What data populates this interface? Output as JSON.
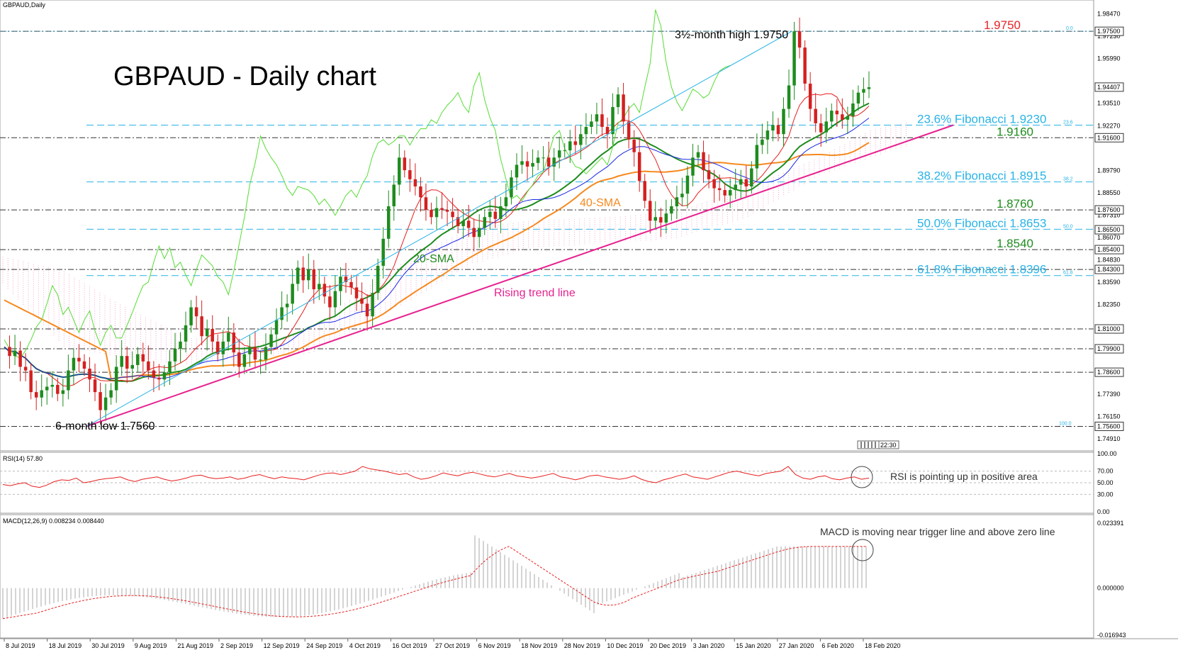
{
  "window": {
    "title": "GBPAUD,Daily"
  },
  "headline": "GBPAUD - Daily chart",
  "price_axis": {
    "labels": [
      "1.98470",
      "1.97230",
      "1.95990",
      "1.94407",
      "1.93510",
      "1.92270",
      "1.91600",
      "1.89790",
      "1.88550",
      "1.87310",
      "1.86070",
      "1.84830",
      "1.83590",
      "1.82350",
      "1.81000",
      "1.79900",
      "1.78600",
      "1.77390",
      "1.76150",
      "1.75600",
      "1.74910"
    ],
    "values": [
      1.9847,
      1.9723,
      1.9599,
      1.94407,
      1.9351,
      1.9227,
      1.916,
      1.8979,
      1.8855,
      1.8731,
      1.8607,
      1.8483,
      1.8359,
      1.8235,
      1.81,
      1.799,
      1.786,
      1.7739,
      1.7615,
      1.756,
      1.7491
    ],
    "boxed": {
      "1.97500": 1.975,
      "1.94407": 1.94407,
      "1.91600": 1.916,
      "1.87600": 1.876,
      "1.86500": 1.865,
      "1.85400": 1.854,
      "1.84300": 1.843,
      "1.81000": 1.81,
      "1.79900": 1.799,
      "1.78600": 1.786,
      "1.75600": 1.756
    },
    "current": "1.94407",
    "range": [
      1.744,
      1.99
    ]
  },
  "date_axis": [
    "8 Jul 2019",
    "18 Jul 2019",
    "30 Jul 2019",
    "9 Aug 2019",
    "21 Aug 2019",
    "2 Sep 2019",
    "12 Sep 2019",
    "24 Sep 2019",
    "4 Oct 2019",
    "16 Oct 2019",
    "27 Oct 2019",
    "6 Nov 2019",
    "18 Nov 2019",
    "28 Nov 2019",
    "10 Dec 2019",
    "20 Dec 2019",
    "3 Jan 2020",
    "15 Jan 2020",
    "27 Jan 2020",
    "6 Feb 2020",
    "18 Feb 2020"
  ],
  "levels": [
    {
      "label": "1.9750",
      "value": 1.975,
      "color": "#e8232a",
      "style": "dashdot",
      "key": "high"
    },
    {
      "label": "23.6% Fibonacci 1.9230",
      "value": 1.923,
      "color": "#29b3e6",
      "style": "dash",
      "key": "fib236"
    },
    {
      "label": "1.9160",
      "value": 1.916,
      "color": "#1e8c1e",
      "style": "dashdot",
      "key": "l1916"
    },
    {
      "label": "38.2% Fibonacci 1.8915",
      "value": 1.8915,
      "color": "#29b3e6",
      "style": "dash",
      "key": "fib382"
    },
    {
      "label": "1.8760",
      "value": 1.876,
      "color": "#1e8c1e",
      "style": "dashdot",
      "key": "l1876"
    },
    {
      "label": "50.0% Fibonacci 1.8653",
      "value": 1.8653,
      "color": "#29b3e6",
      "style": "dash",
      "key": "fib50"
    },
    {
      "label": "1.8540",
      "value": 1.854,
      "color": "#1e8c1e",
      "style": "dashdot",
      "key": "l1854"
    },
    {
      "label": "61.8% Fibonacci 1.8396",
      "value": 1.8396,
      "color": "#29b3e6",
      "style": "dash",
      "key": "fib618"
    }
  ],
  "extra_levels": [
    1.843,
    1.81,
    1.799,
    1.786,
    1.756
  ],
  "fib_small": {
    "fib0": "0.0",
    "fib236": "23.6",
    "fib382": "38.2",
    "fib50": "50.0",
    "fib618": "61.8",
    "fib100": "100.0"
  },
  "annotations": {
    "high": "3½-month high 1.9750",
    "low": "6-month low 1.7560",
    "sma20": "20-SMA",
    "sma40": "40-SMA",
    "trend": "Rising trend line",
    "rsi_note": "RSI is pointing up in positive area",
    "macd_note": "MACD is moving near trigger line and above zero line"
  },
  "rsi": {
    "title": "RSI(14) 57.80",
    "axis_labels": [
      "100.00",
      "70.00",
      "50.00",
      "30.00",
      "0.00"
    ],
    "values": [
      47,
      45,
      48,
      50,
      44,
      42,
      46,
      52,
      55,
      54,
      58,
      50,
      52,
      55,
      57,
      58,
      60,
      55,
      52,
      56,
      58,
      60,
      56,
      53,
      55,
      58,
      62,
      63,
      59,
      57,
      58,
      60,
      56,
      58,
      62,
      64,
      60,
      57,
      60,
      58,
      57,
      55,
      59,
      63,
      66,
      67,
      64,
      67,
      70,
      78,
      74,
      72,
      70,
      67,
      64,
      66,
      60,
      56,
      58,
      62,
      67,
      64,
      62,
      66,
      68,
      65,
      62,
      60,
      63,
      66,
      62,
      60,
      58,
      60,
      63,
      66,
      60,
      58,
      55,
      58,
      62,
      63,
      60,
      58,
      56,
      58,
      62,
      56,
      52,
      50,
      55,
      58,
      62,
      65,
      60,
      58,
      56,
      60,
      64,
      68,
      70,
      67,
      64,
      62,
      66,
      68,
      70,
      78,
      64,
      58,
      56,
      60,
      62,
      57,
      55,
      58,
      60,
      56,
      58
    ]
  },
  "macd": {
    "title": "MACD(12,26,9) 0.008234 0.008440",
    "axis_labels": [
      "0.023391",
      "0.000000",
      "-0.016943"
    ],
    "range": [
      -0.016943,
      0.023391
    ]
  },
  "chart_data": {
    "type": "candlestick",
    "title": "GBPAUD,Daily",
    "ylim": [
      1.744,
      1.99
    ],
    "series": [
      {
        "name": "20-SMA",
        "color": "#1e8c1e"
      },
      {
        "name": "40-SMA",
        "color": "#f5891f"
      }
    ]
  },
  "colors": {
    "bull": "#1e8c1e",
    "bear": "#d42020",
    "sma20": "#1e8c1e",
    "sma40": "#f5891f",
    "trend": "#e6218f",
    "tenkan": "#e81e1e",
    "kijun": "#1a28e6",
    "chikou": "#55dd33",
    "cloud": "#f19acb",
    "fib": "#29b3e6"
  }
}
